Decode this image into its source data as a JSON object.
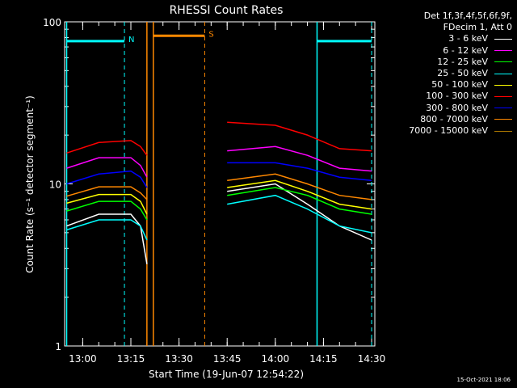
{
  "chart_data": {
    "type": "line",
    "title": "RHESSI Count Rates",
    "xlabel": "Start Time (19-Jun-07 12:54:22)",
    "ylabel": "Count Rate (s⁻¹ detector segment⁻¹)",
    "y_scale": "log",
    "ylim": [
      1,
      100
    ],
    "xlim": [
      "12:54:22",
      "14:31:00"
    ],
    "x_ticks": [
      "13:00",
      "13:15",
      "13:30",
      "13:45",
      "14:00",
      "14:15",
      "14:30"
    ],
    "y_ticks": [
      "1",
      "10",
      "100"
    ],
    "legend_header": [
      "Det 1f,3f,4f,5f,6f,9f,",
      "FDecim 1, Att 0"
    ],
    "series": [
      {
        "name": "3 - 6 keV",
        "color": "#ffffff",
        "x": [
          "12:55",
          "13:05",
          "13:15",
          "13:18",
          "13:20",
          "13:37",
          "13:45",
          "14:00",
          "14:10",
          "14:20",
          "14:30"
        ],
        "y": [
          5.5,
          6.5,
          6.5,
          5.5,
          3.2,
          null,
          9.0,
          10.0,
          7.5,
          5.5,
          4.5
        ]
      },
      {
        "name": "6 - 12 keV",
        "color": "#ff00ff",
        "x": [
          "12:55",
          "13:05",
          "13:15",
          "13:18",
          "13:20",
          "13:37",
          "13:45",
          "14:00",
          "14:10",
          "14:20",
          "14:30"
        ],
        "y": [
          12.5,
          14.5,
          14.5,
          13.0,
          11.0,
          null,
          16.0,
          17.0,
          15.0,
          12.5,
          12.0
        ]
      },
      {
        "name": "12 - 25 keV",
        "color": "#00ff00",
        "x": [
          "12:55",
          "13:05",
          "13:15",
          "13:18",
          "13:20",
          "13:37",
          "13:45",
          "14:00",
          "14:10",
          "14:20",
          "14:30"
        ],
        "y": [
          6.8,
          7.8,
          7.8,
          7.0,
          6.0,
          null,
          8.5,
          9.5,
          8.5,
          7.0,
          6.5
        ]
      },
      {
        "name": "25 - 50 keV",
        "color": "#00ffff",
        "x": [
          "12:55",
          "13:05",
          "13:15",
          "13:18",
          "13:20",
          "13:37",
          "13:45",
          "14:00",
          "14:10",
          "14:20",
          "14:30"
        ],
        "y": [
          5.2,
          6.0,
          6.0,
          5.5,
          4.5,
          null,
          7.5,
          8.5,
          7.0,
          5.5,
          5.0
        ]
      },
      {
        "name": "50 - 100 keV",
        "color": "#ffff00",
        "x": [
          "12:55",
          "13:05",
          "13:15",
          "13:18",
          "13:20",
          "13:37",
          "13:45",
          "14:00",
          "14:10",
          "14:20",
          "14:30"
        ],
        "y": [
          7.6,
          8.6,
          8.6,
          7.8,
          6.5,
          null,
          9.5,
          10.5,
          9.0,
          7.5,
          7.0
        ]
      },
      {
        "name": "100 - 300 keV",
        "color": "#ff0000",
        "x": [
          "12:55",
          "13:05",
          "13:15",
          "13:18",
          "13:20",
          "13:37",
          "13:45",
          "14:00",
          "14:10",
          "14:20",
          "14:30"
        ],
        "y": [
          15.5,
          18.0,
          18.5,
          17.0,
          15.0,
          null,
          24.0,
          23.0,
          20.0,
          16.5,
          16.0
        ]
      },
      {
        "name": "300 - 800 keV",
        "color": "#0000ff",
        "x": [
          "12:55",
          "13:05",
          "13:15",
          "13:18",
          "13:20",
          "13:37",
          "13:45",
          "14:00",
          "14:10",
          "14:20",
          "14:30"
        ],
        "y": [
          10.0,
          11.5,
          12.0,
          11.0,
          9.5,
          null,
          13.5,
          13.5,
          12.5,
          11.0,
          10.5
        ]
      },
      {
        "name": "800 - 7000 keV",
        "color": "#ff8800",
        "x": [
          "12:55",
          "13:05",
          "13:15",
          "13:18",
          "13:20",
          "13:37",
          "13:45",
          "14:00",
          "14:10",
          "14:20",
          "14:30"
        ],
        "y": [
          8.4,
          9.6,
          9.6,
          8.8,
          8.0,
          null,
          10.5,
          11.5,
          10.0,
          8.5,
          8.0
        ]
      },
      {
        "name": "7000 - 15000 keV",
        "color": "#aa7700",
        "x": [],
        "y": []
      }
    ],
    "attenuator_segments": [
      {
        "label": "N",
        "color": "#00ffff",
        "level": 76,
        "x": [
          "12:55",
          "13:13"
        ]
      },
      {
        "label": "",
        "color": "#00ffff",
        "level": 76,
        "x": [
          "14:13",
          "14:30"
        ]
      },
      {
        "label": "S",
        "color": "#ff8800",
        "level": 82,
        "x": [
          "13:22",
          "13:38"
        ]
      }
    ],
    "vlines": [
      {
        "x": "12:55",
        "color": "#00ffff",
        "style": "solid"
      },
      {
        "x": "13:13",
        "color": "#00ffff",
        "style": "dashed"
      },
      {
        "x": "13:20",
        "color": "#ff8800",
        "style": "solid"
      },
      {
        "x": "13:22",
        "color": "#ff8800",
        "style": "solid"
      },
      {
        "x": "13:38",
        "color": "#ff8800",
        "style": "dashed"
      },
      {
        "x": "14:13",
        "color": "#00ffff",
        "style": "solid"
      },
      {
        "x": "14:30",
        "color": "#00ffff",
        "style": "dashed"
      }
    ]
  },
  "timestamp": "15-Oct-2021 18:06"
}
